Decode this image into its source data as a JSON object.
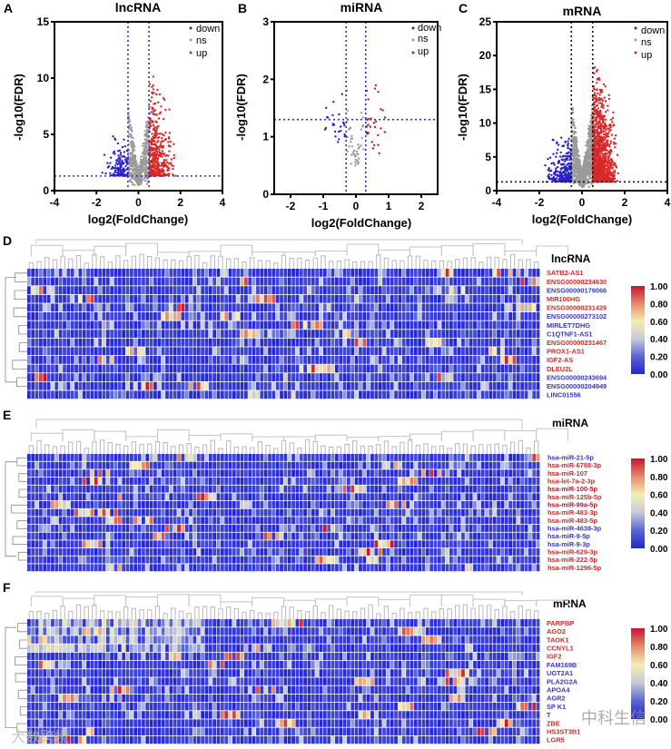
{
  "chart_data": [
    {
      "panel": "A",
      "type": "scatter",
      "title": "lncRNA",
      "xlabel": "log2(FoldChange)",
      "ylabel": "-log10(FDR)",
      "xlim": [
        -4,
        4
      ],
      "ylim": [
        0,
        15
      ],
      "xticks": [
        "-4",
        "-2",
        "0",
        "2",
        "4"
      ],
      "yticks": [
        "0",
        "5",
        "10",
        "15"
      ],
      "thresholds": {
        "log2fc": [
          -0.5,
          0.5
        ],
        "neg_log10_fdr": 1.3
      },
      "legend": [
        "down",
        "ns",
        "up"
      ],
      "legend_position": "top-right",
      "series_colors": {
        "down": "#2b22c8",
        "ns": "#9a9a9a",
        "up": "#d42a2a"
      },
      "approx_counts": {
        "down": 140,
        "ns": 500,
        "up": 420
      },
      "max_y": 11.2
    },
    {
      "panel": "B",
      "type": "scatter",
      "title": "miRNA",
      "xlabel": "log2(FoldChange)",
      "ylabel": "-log10(FDR)",
      "xlim": [
        -2.5,
        2.5
      ],
      "ylim": [
        0,
        3
      ],
      "xticks": [
        "-2",
        "-1",
        "0",
        "1",
        "2"
      ],
      "yticks": [
        "0",
        "1",
        "2",
        "3"
      ],
      "thresholds": {
        "log2fc": [
          -0.3,
          0.3
        ],
        "neg_log10_fdr": 1.3
      },
      "legend": [
        "down",
        "ns",
        "up"
      ],
      "legend_position": "top-right",
      "series_colors": {
        "down": "#2b22c8",
        "ns": "#9a9a9a",
        "up": "#b02040"
      },
      "approx_counts": {
        "down": 25,
        "ns": 45,
        "up": 30
      },
      "max_y": 2.6
    },
    {
      "panel": "C",
      "type": "scatter",
      "title": "mRNA",
      "xlabel": "log2(FoldChange)",
      "ylabel": "-log10(FDR)",
      "xlim": [
        -4,
        4
      ],
      "ylim": [
        0,
        25
      ],
      "xticks": [
        "-4",
        "-2",
        "0",
        "2",
        "4"
      ],
      "yticks": [
        "0",
        "5",
        "10",
        "15",
        "20",
        "25"
      ],
      "thresholds": {
        "log2fc": [
          -0.5,
          0.5
        ],
        "neg_log10_fdr": 1.3
      },
      "legend": [
        "down",
        "ns",
        "up"
      ],
      "legend_position": "top-right",
      "series_colors": {
        "down": "#2b22c8",
        "ns": "#9a9a9a",
        "up": "#d42a2a"
      },
      "approx_counts": {
        "down": 260,
        "ns": 900,
        "up": 1100
      },
      "max_y": 20.5
    },
    {
      "panel": "D",
      "type": "heatmap",
      "title": "lncRNA",
      "colorbar_ticks": [
        "1.00",
        "0.80",
        "0.60",
        "0.40",
        "0.20",
        "0.00"
      ],
      "colorscale": [
        "#2323d6",
        "#5a66d2",
        "#c6cadb",
        "#f4eeb0",
        "#e58a6c",
        "#c8142c"
      ],
      "rows": [
        {
          "label": "SATB2-AS1",
          "color": "#c0302f"
        },
        {
          "label": "ENSG00000234630",
          "color": "#c0302f"
        },
        {
          "label": "ENSG00000179066",
          "color": "#3a3ab0"
        },
        {
          "label": "MIR100HG",
          "color": "#c0302f"
        },
        {
          "label": "ENSG00000231429",
          "color": "#c0302f"
        },
        {
          "label": "ENSG00000273102",
          "color": "#3a3ab0"
        },
        {
          "label": "MIRLET7DHG",
          "color": "#3a3ab0"
        },
        {
          "label": "C1QTNF1-AS1",
          "color": "#3a3ab0"
        },
        {
          "label": "ENSG00000231467",
          "color": "#c0302f"
        },
        {
          "label": "PROX1-AS1",
          "color": "#c0302f"
        },
        {
          "label": "IGF2-AS",
          "color": "#c0302f"
        },
        {
          "label": "DLEU2L",
          "color": "#c0302f"
        },
        {
          "label": "ENSG00000243694",
          "color": "#3a3ab0"
        },
        {
          "label": "ENSG00000204949",
          "color": "#3a3ab0"
        },
        {
          "label": "LINC01556",
          "color": "#3a3ab0"
        }
      ]
    },
    {
      "panel": "E",
      "type": "heatmap",
      "title": "miRNA",
      "colorbar_ticks": [
        "1.00",
        "0.80",
        "0.60",
        "0.40",
        "0.20",
        "0.00"
      ],
      "colorscale": [
        "#2323d6",
        "#5a66d2",
        "#c6cadb",
        "#f4eeb0",
        "#e58a6c",
        "#c8142c"
      ],
      "rows": [
        {
          "label": "hsa-miR-21-5p",
          "color": "#3a3ab0"
        },
        {
          "label": "hsa-miR-6788-3p",
          "color": "#c0302f"
        },
        {
          "label": "hsa-miR-107",
          "color": "#c0302f"
        },
        {
          "label": "hsa-let-7a-2-3p",
          "color": "#c0302f"
        },
        {
          "label": "hsa-miR-100-5p",
          "color": "#a02030"
        },
        {
          "label": "hsa-miR-125b-5p",
          "color": "#c0302f"
        },
        {
          "label": "hsa-miR-99a-5p",
          "color": "#a02030"
        },
        {
          "label": "hsa-miR-483-3p",
          "color": "#c0302f"
        },
        {
          "label": "hsa-miR-483-5p",
          "color": "#c0302f"
        },
        {
          "label": "hsa-miR-4638-3p",
          "color": "#3a3ab0"
        },
        {
          "label": "hsa-miR-9-5p",
          "color": "#3a3ab0"
        },
        {
          "label": "hsa-miR-9-3p",
          "color": "#3a3ab0"
        },
        {
          "label": "hsa-miR-629-3p",
          "color": "#c0302f"
        },
        {
          "label": "hsa-miR-222-5p",
          "color": "#c0302f"
        },
        {
          "label": "hsa-miR-1296-5p",
          "color": "#c0302f"
        }
      ]
    },
    {
      "panel": "F",
      "type": "heatmap",
      "title": "mRNA",
      "colorbar_ticks": [
        "1.00",
        "0.80",
        "0.60",
        "0.40",
        "0.20",
        "0.00"
      ],
      "colorscale": [
        "#2323d6",
        "#5a66d2",
        "#c6cadb",
        "#f4eeb0",
        "#e58a6c",
        "#c8142c"
      ],
      "rows": [
        {
          "label": "PARPBP",
          "color": "#c0302f"
        },
        {
          "label": "AGO2",
          "color": "#c0302f"
        },
        {
          "label": "TAOK1",
          "color": "#c0302f"
        },
        {
          "label": "CCNYL1",
          "color": "#c0302f"
        },
        {
          "label": "IGF2",
          "color": "#c0302f"
        },
        {
          "label": "FAM169B",
          "color": "#3a3ab0"
        },
        {
          "label": "UGT2A1",
          "color": "#3a3ab0"
        },
        {
          "label": "PLA2G2A",
          "color": "#3a3ab0"
        },
        {
          "label": "APOA4",
          "color": "#3a3ab0"
        },
        {
          "label": "AGR2",
          "color": "#3a3ab0"
        },
        {
          "label": "SP  K1",
          "color": "#3a3ab0"
        },
        {
          "label": "T",
          "color": "#3a3ab0"
        },
        {
          "label": "ZBE",
          "color": "#c0302f"
        },
        {
          "label": "HS3ST3B1",
          "color": "#c0302f"
        },
        {
          "label": "LGR5",
          "color": "#c0302f"
        }
      ]
    }
  ],
  "watermarks": [
    "大数跨境",
    "中科生信"
  ]
}
